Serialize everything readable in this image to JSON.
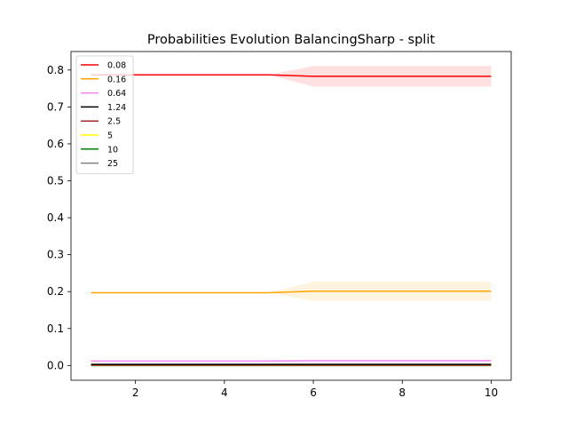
{
  "chart_data": {
    "type": "line",
    "title": "Probabilities Evolution BalancingSharp  - split",
    "xlabel": "",
    "ylabel": "",
    "xlim": [
      0.55,
      10.45
    ],
    "ylim": [
      -0.04,
      0.85
    ],
    "xticks": [
      2,
      4,
      6,
      8,
      10
    ],
    "yticks": [
      0.0,
      0.1,
      0.2,
      0.3,
      0.4,
      0.5,
      0.6,
      0.7,
      0.8
    ],
    "xtick_labels": [
      "2",
      "4",
      "6",
      "8",
      "10"
    ],
    "ytick_labels": [
      "0.0",
      "0.1",
      "0.2",
      "0.3",
      "0.4",
      "0.5",
      "0.6",
      "0.7",
      "0.8"
    ],
    "grid": false,
    "legend_position": "top-left",
    "x": [
      1,
      2,
      3,
      4,
      5,
      6,
      7,
      8,
      9,
      10
    ],
    "series": [
      {
        "name": "0.08",
        "color": "#ff0000",
        "values": [
          0.787,
          0.787,
          0.787,
          0.787,
          0.787,
          0.783,
          0.783,
          0.783,
          0.783,
          0.783
        ],
        "lower": [
          0.787,
          0.787,
          0.787,
          0.787,
          0.787,
          0.755,
          0.755,
          0.755,
          0.755,
          0.755
        ],
        "upper": [
          0.787,
          0.787,
          0.787,
          0.787,
          0.787,
          0.811,
          0.811,
          0.811,
          0.811,
          0.811
        ]
      },
      {
        "name": "0.16",
        "color": "#ffa500",
        "values": [
          0.197,
          0.197,
          0.197,
          0.197,
          0.197,
          0.201,
          0.201,
          0.201,
          0.201,
          0.201
        ],
        "lower": [
          0.197,
          0.197,
          0.197,
          0.197,
          0.197,
          0.175,
          0.175,
          0.175,
          0.175,
          0.175
        ],
        "upper": [
          0.197,
          0.197,
          0.197,
          0.197,
          0.197,
          0.227,
          0.227,
          0.227,
          0.227,
          0.227
        ]
      },
      {
        "name": "0.64",
        "color": "#ee82ee",
        "values": [
          0.012,
          0.012,
          0.012,
          0.012,
          0.012,
          0.013,
          0.013,
          0.013,
          0.013,
          0.013
        ]
      },
      {
        "name": "1.24",
        "color": "#000000",
        "values": [
          0.003,
          0.003,
          0.003,
          0.003,
          0.003,
          0.003,
          0.003,
          0.003,
          0.003,
          0.003
        ]
      },
      {
        "name": "2.5",
        "color": "#a52a2a",
        "values": [
          0.001,
          0.001,
          0.001,
          0.001,
          0.001,
          0.001,
          0.001,
          0.001,
          0.001,
          0.001
        ]
      },
      {
        "name": "5",
        "color": "#ffff00",
        "values": [
          0.0005,
          0.0005,
          0.0005,
          0.0005,
          0.0005,
          0.0005,
          0.0005,
          0.0005,
          0.0005,
          0.0005
        ]
      },
      {
        "name": "10",
        "color": "#008000",
        "values": [
          0.0,
          0.0,
          0.0,
          0.0,
          0.0,
          0.0,
          0.0,
          0.0,
          0.0,
          0.0
        ]
      },
      {
        "name": "25",
        "color": "#808080",
        "values": [
          0.0,
          0.0,
          0.0,
          0.0,
          0.0,
          0.0,
          0.0,
          0.0,
          0.0,
          0.0
        ]
      }
    ]
  }
}
